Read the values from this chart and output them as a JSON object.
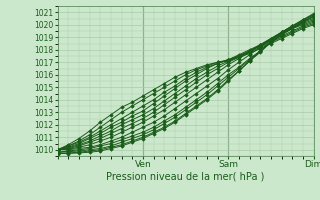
{
  "title": "",
  "xlabel": "Pression niveau de la mer( hPa )",
  "ylabel": "",
  "ylim": [
    1009.5,
    1021.5
  ],
  "xlim": [
    0,
    72
  ],
  "yticks": [
    1010,
    1011,
    1012,
    1013,
    1014,
    1015,
    1016,
    1017,
    1018,
    1019,
    1020,
    1021
  ],
  "xtick_positions": [
    0,
    24,
    48,
    72
  ],
  "xtick_labels": [
    "",
    "Ven",
    "Sam",
    "Dim"
  ],
  "grid_color": "#aacaaa",
  "bg_color": "#cce8cc",
  "line_color": "#1a5c1a",
  "figsize": [
    3.2,
    2.0
  ],
  "dpi": 100,
  "lines": [
    {
      "x": [
        0,
        3,
        6,
        9,
        12,
        15,
        18,
        21,
        24,
        27,
        30,
        33,
        36,
        39,
        42,
        45,
        48,
        51,
        54,
        57,
        60,
        63,
        66,
        69,
        72
      ],
      "y": [
        1010.0,
        1010.4,
        1010.9,
        1011.5,
        1012.2,
        1012.8,
        1013.4,
        1013.8,
        1014.3,
        1014.8,
        1015.3,
        1015.8,
        1016.2,
        1016.5,
        1016.8,
        1017.0,
        1017.1,
        1017.4,
        1017.7,
        1018.1,
        1018.5,
        1018.9,
        1019.3,
        1019.7,
        1020.0
      ]
    },
    {
      "x": [
        0,
        3,
        6,
        9,
        12,
        15,
        18,
        21,
        24,
        27,
        30,
        33,
        36,
        39,
        42,
        45,
        48,
        51,
        54,
        57,
        60,
        63,
        66,
        69,
        72
      ],
      "y": [
        1010.0,
        1010.3,
        1010.7,
        1011.2,
        1011.8,
        1012.4,
        1013.0,
        1013.5,
        1014.0,
        1014.5,
        1015.0,
        1015.5,
        1016.0,
        1016.4,
        1016.7,
        1017.0,
        1017.2,
        1017.5,
        1017.8,
        1018.2,
        1018.6,
        1019.0,
        1019.4,
        1019.8,
        1020.1
      ]
    },
    {
      "x": [
        0,
        3,
        6,
        9,
        12,
        15,
        18,
        21,
        24,
        27,
        30,
        33,
        36,
        39,
        42,
        45,
        48,
        51,
        54,
        57,
        60,
        63,
        66,
        69,
        72
      ],
      "y": [
        1010.0,
        1010.3,
        1010.6,
        1011.0,
        1011.5,
        1012.0,
        1012.5,
        1013.0,
        1013.5,
        1014.0,
        1014.6,
        1015.1,
        1015.7,
        1016.2,
        1016.6,
        1016.9,
        1017.2,
        1017.5,
        1017.9,
        1018.3,
        1018.7,
        1019.1,
        1019.5,
        1019.9,
        1020.2
      ]
    },
    {
      "x": [
        0,
        3,
        6,
        9,
        12,
        15,
        18,
        21,
        24,
        27,
        30,
        33,
        36,
        39,
        42,
        45,
        48,
        51,
        54,
        57,
        60,
        63,
        66,
        69,
        72
      ],
      "y": [
        1010.0,
        1010.2,
        1010.5,
        1010.9,
        1011.3,
        1011.8,
        1012.2,
        1012.7,
        1013.1,
        1013.7,
        1014.3,
        1014.9,
        1015.5,
        1016.0,
        1016.5,
        1016.9,
        1017.2,
        1017.6,
        1018.0,
        1018.4,
        1018.8,
        1019.3,
        1019.7,
        1020.0,
        1020.3
      ]
    },
    {
      "x": [
        0,
        3,
        6,
        9,
        12,
        15,
        18,
        21,
        24,
        27,
        30,
        33,
        36,
        39,
        42,
        45,
        48,
        51,
        54,
        57,
        60,
        63,
        66,
        69,
        72
      ],
      "y": [
        1010.0,
        1010.15,
        1010.4,
        1010.7,
        1011.1,
        1011.5,
        1012.0,
        1012.4,
        1012.8,
        1013.3,
        1013.9,
        1014.5,
        1015.1,
        1015.7,
        1016.2,
        1016.7,
        1017.1,
        1017.5,
        1017.9,
        1018.3,
        1018.8,
        1019.3,
        1019.7,
        1020.1,
        1020.4
      ]
    },
    {
      "x": [
        0,
        3,
        6,
        9,
        12,
        15,
        18,
        21,
        24,
        27,
        30,
        33,
        36,
        39,
        42,
        45,
        48,
        51,
        54,
        57,
        60,
        63,
        66,
        69,
        72
      ],
      "y": [
        1010.0,
        1010.1,
        1010.3,
        1010.6,
        1010.9,
        1011.3,
        1011.7,
        1012.1,
        1012.5,
        1013.0,
        1013.6,
        1014.2,
        1014.8,
        1015.4,
        1016.0,
        1016.5,
        1017.0,
        1017.4,
        1017.9,
        1018.4,
        1018.9,
        1019.4,
        1019.8,
        1020.2,
        1020.5
      ]
    },
    {
      "x": [
        0,
        3,
        6,
        9,
        12,
        15,
        18,
        21,
        24,
        27,
        30,
        33,
        36,
        39,
        42,
        45,
        48,
        51,
        54,
        57,
        60,
        63,
        66,
        69,
        72
      ],
      "y": [
        1010.0,
        1010.05,
        1010.2,
        1010.4,
        1010.7,
        1011.0,
        1011.4,
        1011.8,
        1012.2,
        1012.7,
        1013.2,
        1013.8,
        1014.4,
        1015.0,
        1015.6,
        1016.2,
        1016.8,
        1017.3,
        1017.8,
        1018.4,
        1018.9,
        1019.4,
        1019.9,
        1020.3,
        1020.6
      ]
    },
    {
      "x": [
        0,
        3,
        6,
        9,
        12,
        15,
        18,
        21,
        24,
        27,
        30,
        33,
        36,
        39,
        42,
        45,
        48,
        51,
        54,
        57,
        60,
        63,
        66,
        69,
        72
      ],
      "y": [
        1010.0,
        1010.0,
        1010.1,
        1010.2,
        1010.4,
        1010.7,
        1011.0,
        1011.4,
        1011.8,
        1012.2,
        1012.7,
        1013.3,
        1013.9,
        1014.5,
        1015.1,
        1015.7,
        1016.4,
        1017.0,
        1017.6,
        1018.2,
        1018.8,
        1019.4,
        1019.9,
        1020.4,
        1020.8
      ]
    },
    {
      "x": [
        0,
        3,
        6,
        9,
        12,
        15,
        18,
        21,
        24,
        27,
        30,
        33,
        36,
        39,
        42,
        45,
        48,
        51,
        54,
        57,
        60,
        63,
        66,
        69,
        72
      ],
      "y": [
        1009.8,
        1009.9,
        1010.0,
        1010.1,
        1010.3,
        1010.5,
        1010.8,
        1011.1,
        1011.4,
        1011.8,
        1012.3,
        1012.8,
        1013.4,
        1014.0,
        1014.6,
        1015.3,
        1016.0,
        1016.6,
        1017.3,
        1017.9,
        1018.6,
        1019.2,
        1019.7,
        1020.2,
        1020.7
      ]
    },
    {
      "x": [
        0,
        3,
        6,
        9,
        12,
        15,
        18,
        21,
        24,
        27,
        30,
        33,
        36,
        39,
        42,
        45,
        48,
        51,
        54,
        57,
        60,
        63,
        66,
        69,
        72
      ],
      "y": [
        1009.8,
        1009.85,
        1009.9,
        1010.0,
        1010.1,
        1010.3,
        1010.6,
        1010.9,
        1011.2,
        1011.6,
        1012.1,
        1012.6,
        1013.2,
        1013.8,
        1014.4,
        1015.1,
        1015.8,
        1016.5,
        1017.2,
        1017.9,
        1018.6,
        1019.2,
        1019.7,
        1020.2,
        1020.7
      ]
    },
    {
      "x": [
        0,
        3,
        6,
        9,
        12,
        15,
        18,
        21,
        24,
        27,
        30,
        33,
        36,
        39,
        42,
        45,
        48,
        51,
        54,
        57,
        60,
        63,
        66,
        69,
        72
      ],
      "y": [
        1009.7,
        1009.75,
        1009.8,
        1009.9,
        1010.0,
        1010.2,
        1010.4,
        1010.7,
        1011.0,
        1011.4,
        1011.8,
        1012.3,
        1012.9,
        1013.5,
        1014.1,
        1014.8,
        1015.6,
        1016.3,
        1017.1,
        1017.8,
        1018.6,
        1019.3,
        1019.8,
        1020.3,
        1020.8
      ]
    },
    {
      "x": [
        0,
        3,
        6,
        9,
        12,
        15,
        18,
        21,
        24,
        27,
        30,
        33,
        36,
        39,
        42,
        45,
        48,
        51,
        54,
        57,
        60,
        63,
        66,
        69,
        72
      ],
      "y": [
        1009.7,
        1009.7,
        1009.75,
        1009.8,
        1009.9,
        1010.1,
        1010.3,
        1010.6,
        1010.9,
        1011.3,
        1011.7,
        1012.2,
        1012.8,
        1013.4,
        1014.0,
        1014.7,
        1015.5,
        1016.3,
        1017.1,
        1017.9,
        1018.7,
        1019.4,
        1019.9,
        1020.4,
        1020.9
      ]
    }
  ]
}
